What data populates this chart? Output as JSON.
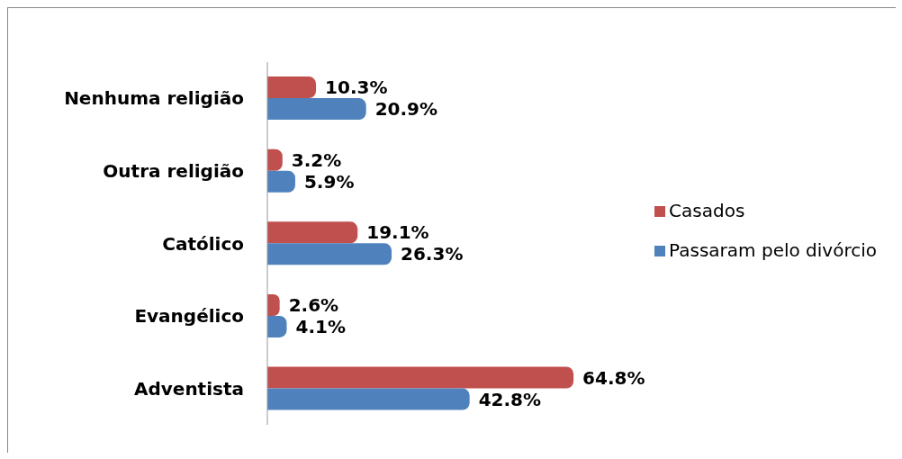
{
  "chart_data": {
    "type": "bar",
    "orientation": "horizontal",
    "categories": [
      "Nenhuma religião",
      "Outra religião",
      "Católico",
      "Evangélico",
      "Adventista"
    ],
    "series": [
      {
        "name": "Casados",
        "color": "#c0504d",
        "values": [
          10.3,
          3.2,
          19.1,
          2.6,
          64.8
        ],
        "value_labels": [
          "10.3%",
          "3.2%",
          "19.1%",
          "2.6%",
          "64.8%"
        ]
      },
      {
        "name": "Passaram pelo divórcio",
        "color": "#4f81bd",
        "values": [
          20.9,
          5.9,
          26.3,
          4.1,
          42.8
        ],
        "value_labels": [
          "20.9%",
          "5.9%",
          "26.3%",
          "4.1%",
          "42.8%"
        ]
      }
    ],
    "legend": "right"
  }
}
